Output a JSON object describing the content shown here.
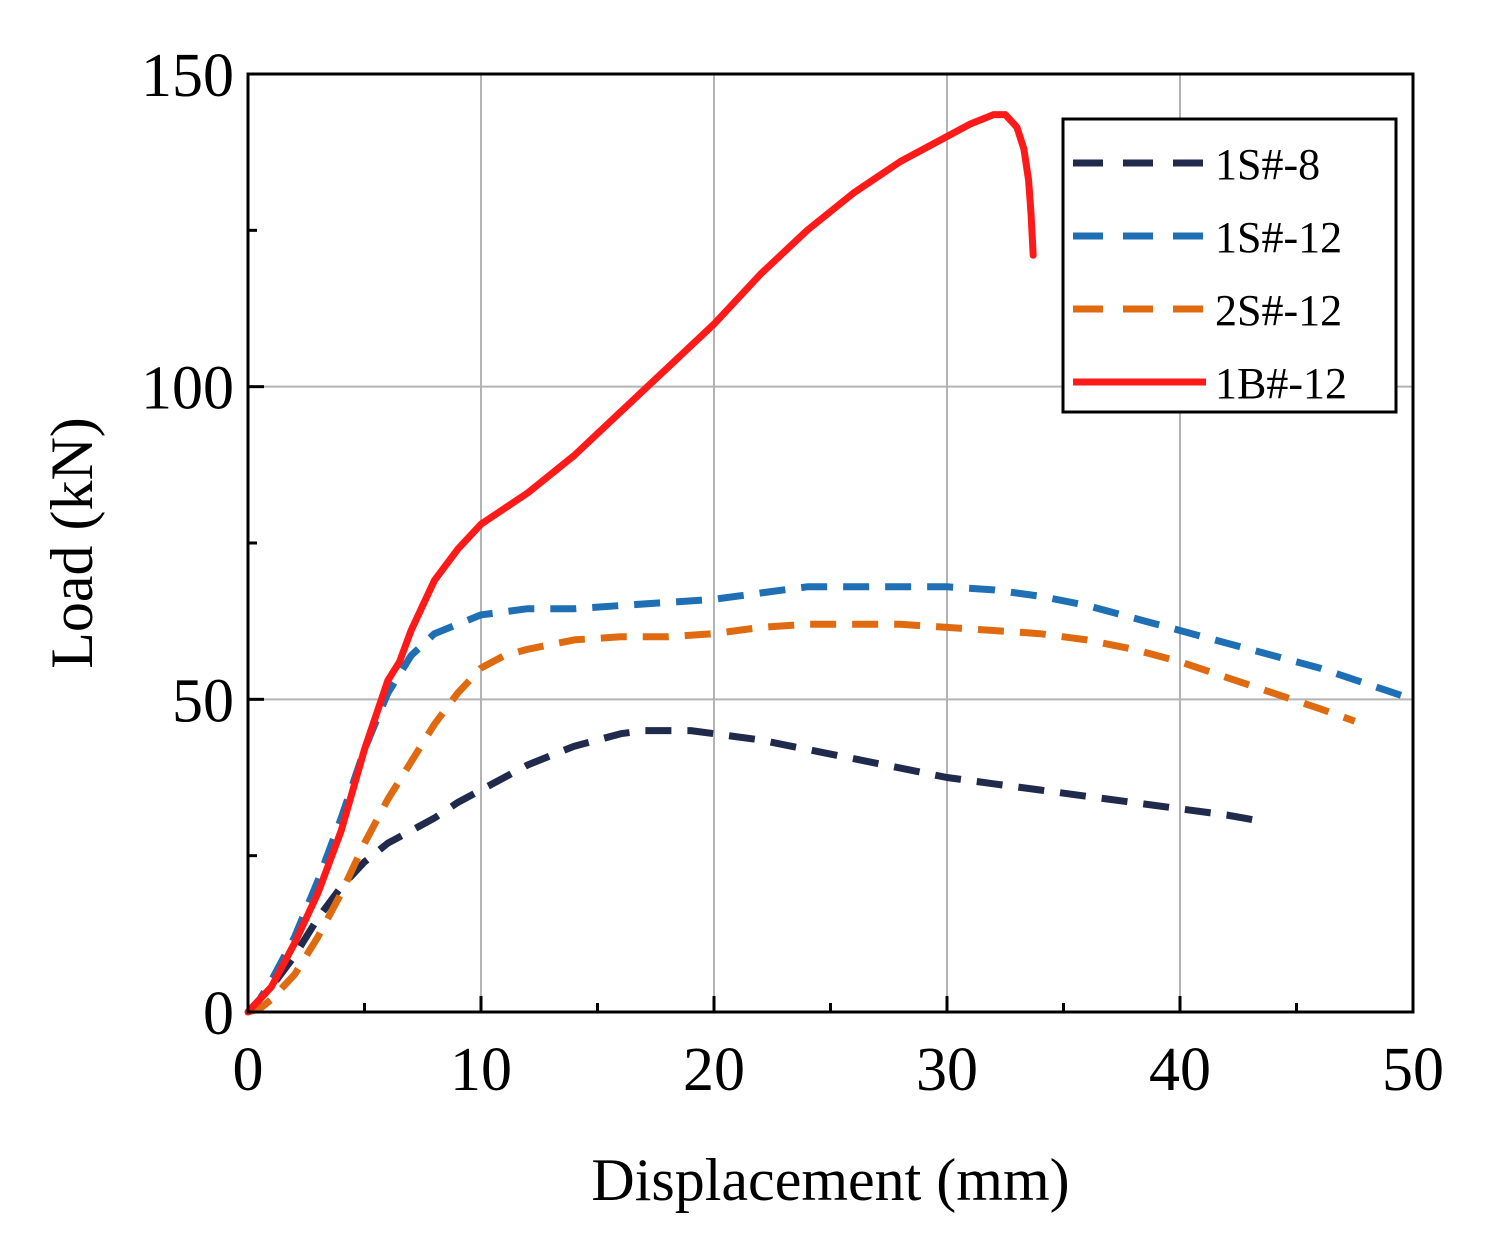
{
  "chart_data": {
    "type": "line",
    "title": "",
    "xlabel": "Displacement (mm)",
    "ylabel": "Load (kN)",
    "xlim": [
      0,
      50
    ],
    "ylim": [
      0,
      150
    ],
    "xticks": [
      0,
      10,
      20,
      30,
      40,
      50
    ],
    "yticks": [
      0,
      50,
      100,
      150
    ],
    "xtick_labels": [
      "0",
      "10",
      "20",
      "30",
      "40",
      "50"
    ],
    "ytick_labels": [
      "0",
      "50",
      "100",
      "150"
    ],
    "grid": true,
    "legend_position": "top-right",
    "series": [
      {
        "name": "1S#-8",
        "color": "#1f2a4c",
        "style": "dashed",
        "x": [
          0,
          0.5,
          1,
          2,
          3,
          4,
          5,
          6,
          7,
          8,
          9,
          10,
          11,
          12,
          13,
          14,
          15,
          16,
          17,
          18,
          19,
          20,
          22,
          24,
          26,
          28,
          30,
          32,
          34,
          36,
          38,
          40,
          42,
          43.5
        ],
        "y": [
          0,
          2,
          4,
          9,
          15,
          20,
          24,
          27,
          29,
          31,
          33.5,
          35.5,
          37.5,
          39.5,
          41,
          42.5,
          43.5,
          44.5,
          45,
          45,
          45,
          44.5,
          43.5,
          42,
          40.5,
          39,
          37.5,
          36.5,
          35.5,
          34.5,
          33.5,
          32.5,
          31.5,
          30.5
        ]
      },
      {
        "name": "1S#-12",
        "color": "#1f6fb4",
        "style": "dashed",
        "x": [
          0,
          0.5,
          1,
          2,
          3,
          4,
          5,
          6,
          7,
          8,
          9,
          10,
          12,
          14,
          16,
          18,
          20,
          22,
          24,
          26,
          28,
          30,
          32,
          34,
          36,
          38,
          40,
          42,
          44,
          46,
          48,
          50
        ],
        "y": [
          0,
          2,
          5,
          12,
          21,
          31,
          42,
          51,
          57,
          60.5,
          62,
          63.5,
          64.5,
          64.5,
          65,
          65.5,
          66,
          67,
          68,
          68,
          68,
          68,
          67.5,
          66.5,
          65,
          63,
          61,
          59,
          57,
          55,
          52.5,
          50
        ]
      },
      {
        "name": "2S#-12",
        "color": "#e06a10",
        "style": "dashed",
        "x": [
          0,
          0.5,
          1,
          2,
          3,
          4,
          5,
          6,
          7,
          8,
          9,
          10,
          11,
          12,
          14,
          16,
          18,
          20,
          22,
          24,
          26,
          28,
          30,
          32,
          34,
          36,
          38,
          40,
          42,
          44,
          46,
          47.5
        ],
        "y": [
          0,
          0.5,
          2,
          6,
          12,
          19,
          27,
          34,
          40,
          46,
          51,
          55,
          57,
          58,
          59.5,
          60,
          60,
          60.5,
          61.5,
          62,
          62,
          62,
          61.5,
          61,
          60.5,
          59.5,
          58,
          56,
          53.5,
          51,
          48.5,
          46.5
        ]
      },
      {
        "name": "1B#-12",
        "color": "#ff1a1a",
        "style": "solid",
        "x": [
          0,
          0.5,
          1,
          2,
          3,
          4,
          5,
          6,
          6.5,
          7,
          8,
          9,
          10,
          12,
          14,
          16,
          18,
          20,
          22,
          24,
          26,
          28,
          30,
          31,
          32,
          32.5,
          33,
          33.3,
          33.5,
          33.6,
          33.7
        ],
        "y": [
          0,
          2,
          4,
          11,
          19,
          29,
          42,
          53,
          56,
          61,
          69,
          74,
          78,
          83,
          89,
          96,
          103,
          110,
          118,
          125,
          131,
          136,
          140,
          142,
          143.5,
          143.5,
          141.5,
          138,
          133,
          128,
          121
        ]
      }
    ]
  }
}
